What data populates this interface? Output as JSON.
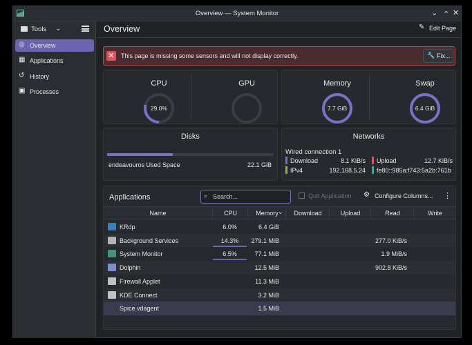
{
  "window": {
    "title": "Overview — System Monitor"
  },
  "sidebar": {
    "tools": "Tools",
    "items": [
      "Overview",
      "Applications",
      "History",
      "Processes"
    ],
    "selected": 0
  },
  "header": {
    "title": "Overview",
    "edit": "Edit Page"
  },
  "warning": {
    "text": "This page is missing some sensors and will not display correctly.",
    "button": "Fix..."
  },
  "gauges": [
    {
      "label": "CPU",
      "value": "29.0%"
    },
    {
      "label": "GPU"
    },
    {
      "label": "Memory",
      "value": "7.7 GiB"
    },
    {
      "label": "Swap",
      "value": "6.4 GiB"
    }
  ],
  "disks": {
    "title": "Disks",
    "name": "endeavouros Used Space",
    "value": "22.1 GiB"
  },
  "networks": {
    "title": "Networks",
    "connection": "Wired connection 1",
    "items": [
      {
        "label": "Download",
        "value": "8.1 KiB/s",
        "color": "#7b6fc6"
      },
      {
        "label": "Upload",
        "value": "12.7 KiB/s",
        "color": "#c95a5f"
      },
      {
        "label": "IPv4",
        "value": "192.168.5.24",
        "color": "#a7a84a"
      },
      {
        "value": "fe80::985a:f743:5a2b:761b",
        "color": "#3aa59a"
      }
    ]
  },
  "applications": {
    "title": "Applications",
    "search": "Search...",
    "quit": "Quit Application",
    "configure": "Configure Columns...",
    "columns": [
      "Name",
      "CPU",
      "Memory",
      "Download",
      "Upload",
      "Read",
      "Write"
    ],
    "rows": [
      [
        "KRdp",
        "6.0%",
        "6.4 GiB",
        null,
        null,
        null,
        null
      ],
      [
        "Background Services",
        "14.3%",
        "279.1 MiB",
        null,
        null,
        "277.0 KiB/s",
        null
      ],
      [
        "System Monitor",
        "6.5%",
        "77.1 MiB",
        null,
        null,
        "1.9 MiB/s",
        null
      ],
      [
        "Dolphin",
        null,
        "12.5 MiB",
        null,
        null,
        "902.8 KiB/s",
        null
      ],
      [
        "Firewall Applet",
        null,
        "11.3 MiB",
        null,
        null,
        null,
        null
      ],
      [
        "KDE Connect",
        null,
        "3.2 MiB",
        null,
        null,
        null,
        null
      ],
      [
        "Spice vdagent",
        null,
        "1.5 MiB",
        null,
        null,
        null,
        null
      ]
    ],
    "selected": 6
  }
}
